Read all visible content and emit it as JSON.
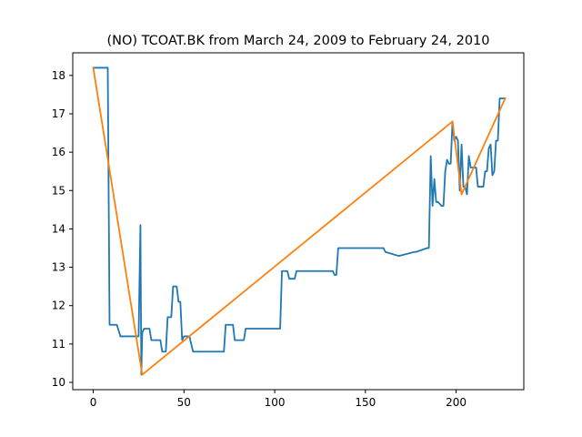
{
  "chart_data": {
    "type": "line",
    "title": "(NO) TCOAT.BK from March 24, 2009 to February 24, 2010",
    "xlabel": "",
    "ylabel": "",
    "xlim": [
      -11.3,
      237.3
    ],
    "ylim": [
      9.81,
      18.59
    ],
    "xticks": [
      0,
      50,
      100,
      150,
      200
    ],
    "yticks": [
      10,
      11,
      12,
      13,
      14,
      15,
      16,
      17,
      18
    ],
    "grid": false,
    "legend": "none",
    "series": [
      {
        "color": "#1f77b4",
        "x": [
          0,
          8,
          9,
          13,
          15,
          24,
          25,
          26,
          26.5,
          27,
          28,
          31,
          32,
          37,
          38,
          40,
          41,
          43,
          44,
          46,
          47,
          48,
          49,
          50,
          51,
          53,
          55,
          72,
          73,
          77,
          78,
          83,
          84,
          103,
          104,
          107,
          108,
          111,
          112,
          132,
          133,
          134,
          135,
          160,
          161,
          168,
          169,
          177,
          178,
          184,
          184.5,
          185,
          186,
          187,
          188,
          189,
          190,
          192,
          193,
          194,
          195,
          196,
          197,
          198,
          199,
          200,
          201,
          202,
          203,
          204,
          205,
          206,
          207,
          208,
          209,
          210,
          211,
          212,
          213,
          214,
          215,
          216,
          217,
          218,
          219,
          220,
          221,
          222,
          223,
          224,
          225,
          226,
          227
        ],
        "y": [
          18.2,
          18.2,
          11.5,
          11.5,
          11.2,
          11.2,
          11.2,
          14.1,
          10.2,
          11.3,
          11.4,
          11.4,
          11.1,
          11.1,
          10.8,
          10.8,
          11.7,
          11.7,
          12.5,
          12.5,
          12.1,
          12.1,
          11.1,
          11.2,
          11.2,
          11.2,
          10.8,
          10.8,
          11.5,
          11.5,
          11.1,
          11.1,
          11.4,
          11.4,
          12.9,
          12.9,
          12.7,
          12.7,
          12.9,
          12.9,
          12.8,
          12.8,
          13.5,
          13.5,
          13.4,
          13.3,
          13.3,
          13.4,
          13.4,
          13.5,
          13.5,
          13.5,
          15.9,
          14.6,
          15.3,
          14.7,
          14.7,
          14.6,
          14.6,
          15.5,
          15.8,
          15.7,
          15.7,
          16.8,
          16.3,
          16.4,
          16.3,
          15.0,
          16.2,
          15.1,
          15.1,
          14.9,
          15.9,
          15.6,
          15.6,
          15.6,
          15.6,
          15.1,
          15.1,
          15.1,
          15.1,
          15.5,
          15.5,
          16.1,
          16.2,
          15.4,
          15.5,
          16.3,
          16.3,
          17.4,
          17.4,
          17.4,
          17.4
        ]
      },
      {
        "color": "#ff7f0e",
        "x": [
          0,
          27,
          198,
          203,
          227
        ],
        "y": [
          18.2,
          10.2,
          16.8,
          14.9,
          17.4
        ]
      }
    ]
  }
}
